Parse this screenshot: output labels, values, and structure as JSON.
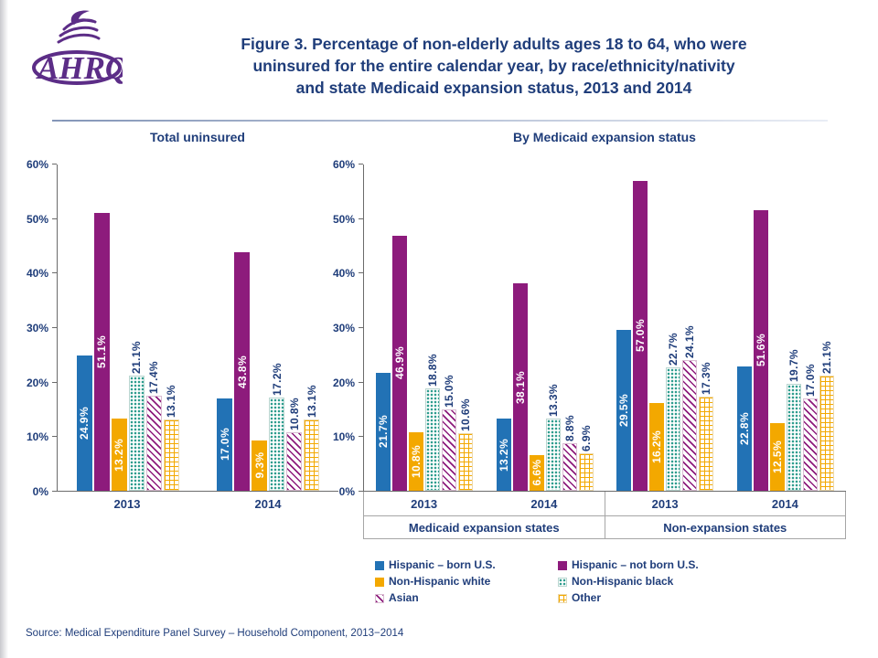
{
  "header": {
    "logo_text": "AHRQ",
    "logo_color": "#5C2D87",
    "title_lines": [
      "Figure 3. Percentage of non-elderly adults ages 18 to 64, who were",
      "uninsured for the entire calendar year, by race/ethnicity/nativity",
      "and state Medicaid expansion status, 2013 and 2014"
    ],
    "title_color": "#1F3D7A"
  },
  "source_note": "Source: Medical Expenditure Panel Survey – Household Component, 2013−2014",
  "palette": {
    "hispanic_born_us": "#2272B5",
    "hispanic_not_born_us": "#8D1B7C",
    "non_hispanic_white": "#F3A800",
    "non_hispanic_black_dots": "#2E9D8E",
    "asian_stripes": "#8D1B7C",
    "other_grid": "#F3A800",
    "text_navy": "#1F3D7A"
  },
  "legend": {
    "position": "bottom",
    "items": [
      {
        "label": "Hispanic – born U.S.",
        "pattern": "blue"
      },
      {
        "label": "Hispanic – not born U.S.",
        "pattern": "purple"
      },
      {
        "label": "Non-Hispanic white",
        "pattern": "orange"
      },
      {
        "label": "Non-Hispanic black",
        "pattern": "dots"
      },
      {
        "label": "Asian",
        "pattern": "stripes"
      },
      {
        "label": "Other",
        "pattern": "grid"
      }
    ]
  },
  "chart_data": [
    {
      "type": "bar",
      "title": "Total uninsured",
      "xlabel": "",
      "ylabel": "",
      "ylim": [
        0,
        60
      ],
      "yticks": [
        "0%",
        "10%",
        "20%",
        "30%",
        "40%",
        "50%",
        "60%"
      ],
      "grid": false,
      "categories": [
        "2013",
        "2014"
      ],
      "series": [
        {
          "name": "Hispanic – born U.S.",
          "pattern": "blue",
          "values": [
            24.9,
            17.0
          ]
        },
        {
          "name": "Hispanic – not born U.S.",
          "pattern": "purple",
          "values": [
            51.1,
            43.8
          ]
        },
        {
          "name": "Non-Hispanic white",
          "pattern": "orange",
          "values": [
            13.2,
            9.3
          ]
        },
        {
          "name": "Non-Hispanic black",
          "pattern": "dots",
          "values": [
            21.1,
            17.2
          ]
        },
        {
          "name": "Asian",
          "pattern": "stripes",
          "values": [
            17.4,
            10.8
          ]
        },
        {
          "name": "Other",
          "pattern": "grid",
          "values": [
            13.1,
            13.1
          ]
        }
      ],
      "value_label_format": "one_decimal_percent"
    },
    {
      "type": "bar",
      "title": "By Medicaid expansion status",
      "xlabel": "",
      "ylabel": "",
      "ylim": [
        0,
        60
      ],
      "yticks": [
        "0%",
        "10%",
        "20%",
        "30%",
        "40%",
        "50%",
        "60%"
      ],
      "grid": false,
      "categories": [
        "2013",
        "2014",
        "2013",
        "2014"
      ],
      "category_groups": [
        {
          "label": "Medicaid expansion states",
          "span": 2
        },
        {
          "label": "Non-expansion states",
          "span": 2
        }
      ],
      "series": [
        {
          "name": "Hispanic – born U.S.",
          "pattern": "blue",
          "values": [
            21.7,
            13.2,
            29.5,
            22.8
          ]
        },
        {
          "name": "Hispanic – not born U.S.",
          "pattern": "purple",
          "values": [
            46.9,
            38.1,
            57.0,
            51.6
          ]
        },
        {
          "name": "Non-Hispanic white",
          "pattern": "orange",
          "values": [
            10.8,
            6.6,
            16.2,
            12.5
          ]
        },
        {
          "name": "Non-Hispanic black",
          "pattern": "dots",
          "values": [
            18.8,
            13.3,
            22.7,
            19.7
          ]
        },
        {
          "name": "Asian",
          "pattern": "stripes",
          "values": [
            15.0,
            8.8,
            24.1,
            17.0
          ]
        },
        {
          "name": "Other",
          "pattern": "grid",
          "values": [
            10.6,
            6.9,
            17.3,
            21.1
          ]
        }
      ],
      "value_label_format": "one_decimal_percent"
    }
  ]
}
